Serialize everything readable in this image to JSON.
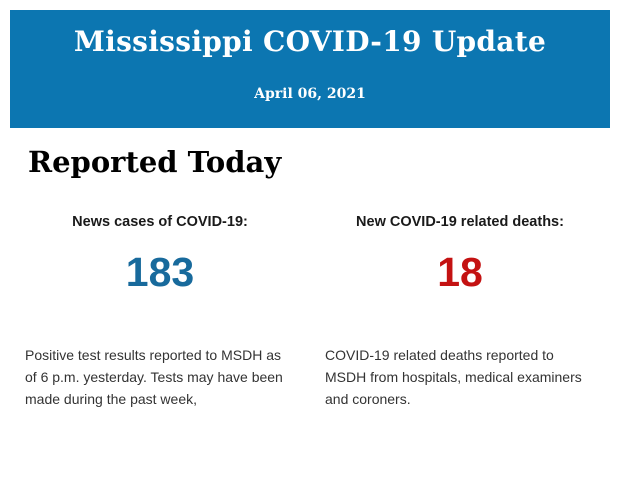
{
  "header": {
    "title": "Mississippi COVID-19 Update",
    "date": "April 06, 2021",
    "background": "#0C76B1",
    "text_color": "#FFFFFF"
  },
  "section": {
    "heading": "Reported Today"
  },
  "stats": {
    "cases": {
      "label": "News cases of COVID-19:",
      "value": "183",
      "color": "#186A9C",
      "description": "Positive test results reported to MSDH as of 6 p.m. yesterday. Tests may have been made during the past week,"
    },
    "deaths": {
      "label": "New COVID-19 related deaths:",
      "value": "18",
      "color": "#C41212",
      "description": "COVID-19 related deaths reported to MSDH from hospitals, medical examiners and coroners."
    }
  }
}
